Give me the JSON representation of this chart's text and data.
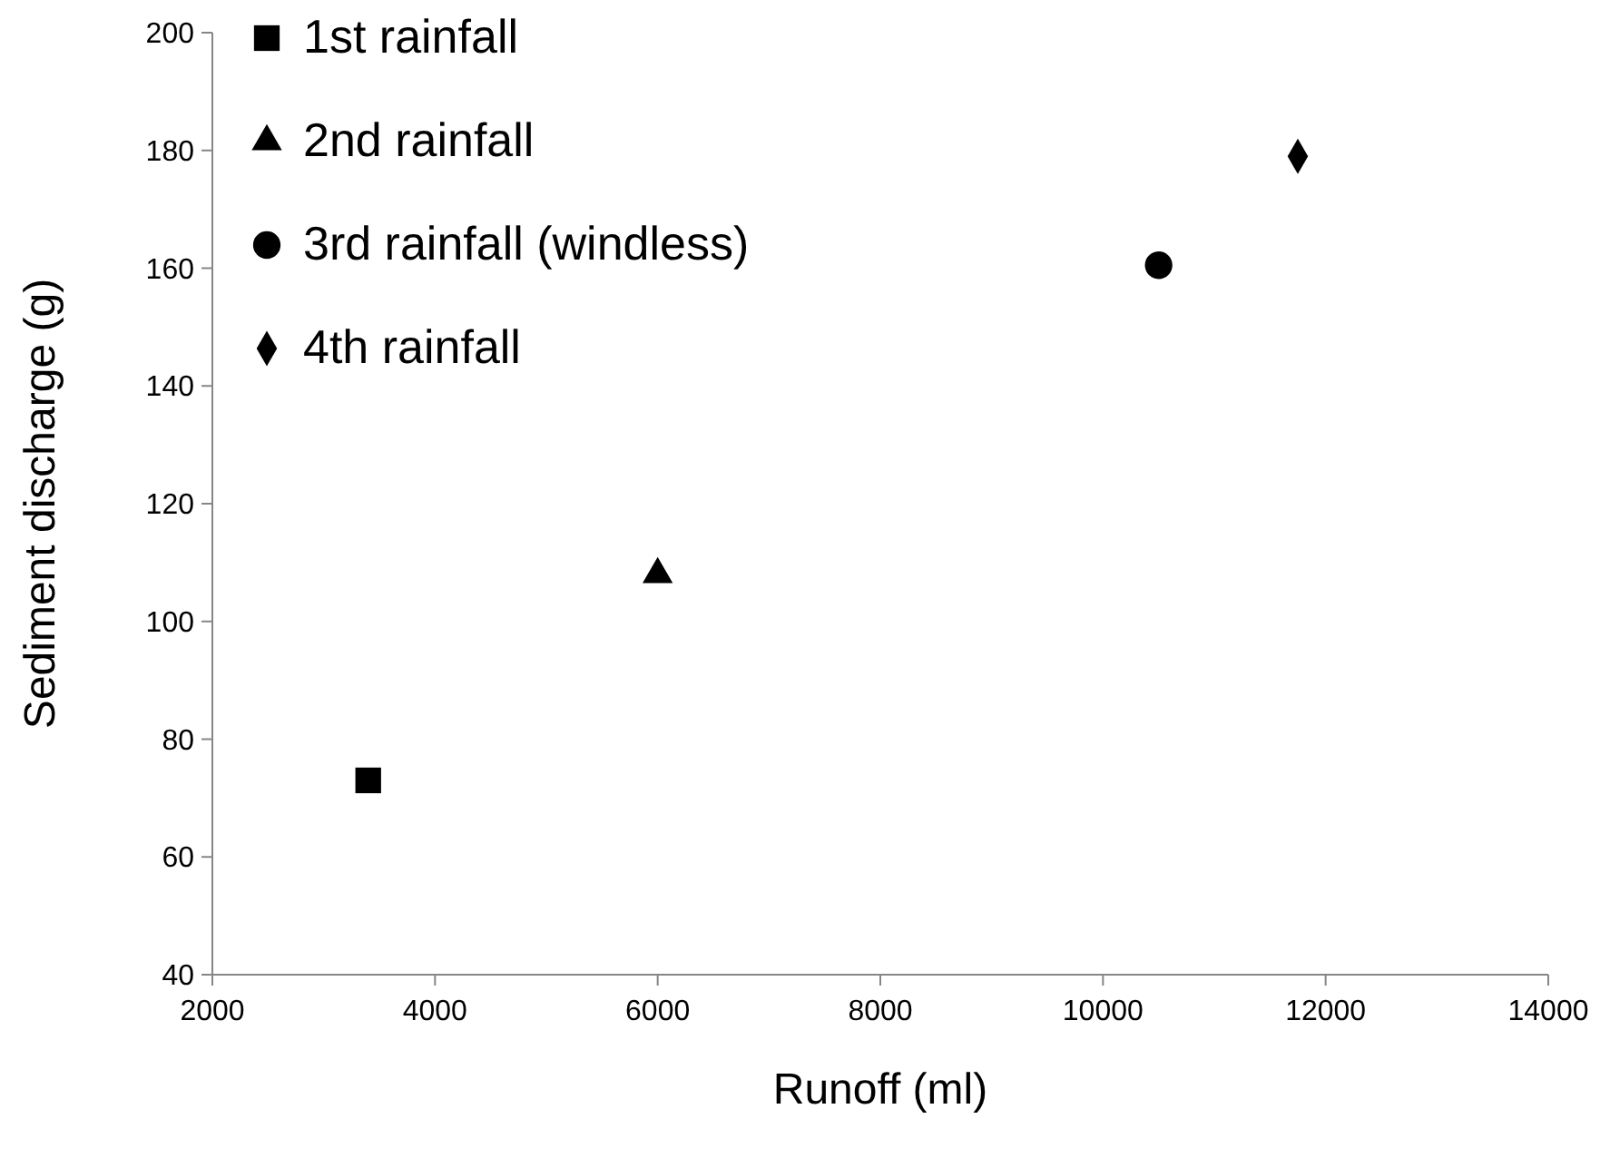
{
  "chart_data": {
    "type": "scatter",
    "xlabel": "Runoff (ml)",
    "ylabel": "Sediment discharge (g)",
    "xlim": [
      2000,
      14000
    ],
    "xticks": [
      2000,
      4000,
      6000,
      8000,
      10000,
      12000,
      14000
    ],
    "ylim": [
      40,
      200
    ],
    "yticks": [
      40,
      60,
      80,
      100,
      120,
      140,
      160,
      180,
      200
    ],
    "grid": false,
    "legend": "top left",
    "series": [
      {
        "name": "1st rainfall",
        "color": "#000000",
        "marker": "square",
        "x": [
          3400
        ],
        "values": [
          73
        ]
      },
      {
        "name": "2nd rainfall",
        "color": "#000000",
        "marker": "triangle",
        "x": [
          6000
        ],
        "values": [
          108
        ]
      },
      {
        "name": "3rd rainfall (windless)",
        "color": "#000000",
        "marker": "circle",
        "x": [
          10500
        ],
        "values": [
          160.5
        ]
      },
      {
        "name": "4th rainfall",
        "color": "#000000",
        "marker": "diamond",
        "x": [
          11750
        ],
        "values": [
          179
        ]
      }
    ]
  }
}
